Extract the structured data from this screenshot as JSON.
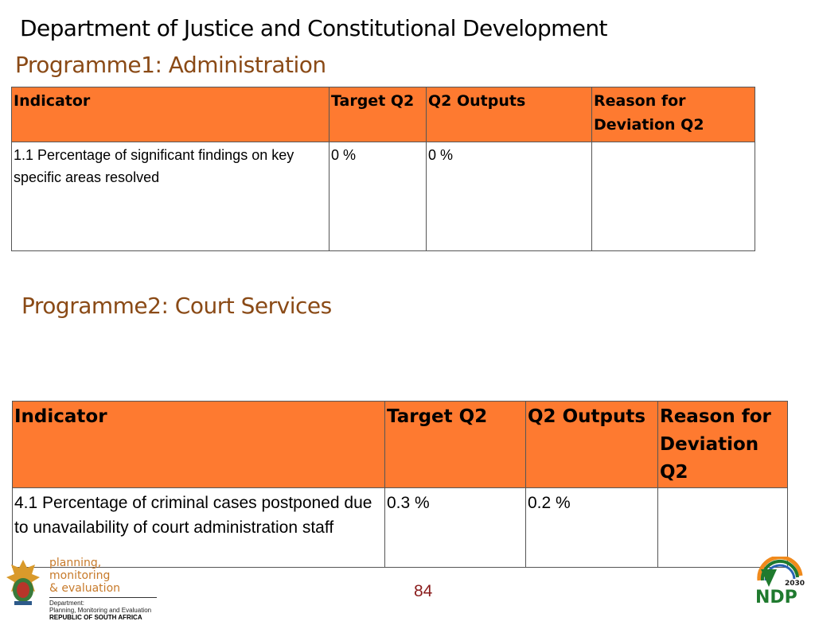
{
  "header": {
    "department": "Department of Justice and Constitutional Development"
  },
  "programme1": {
    "title": "Programme1: Administration",
    "columns": [
      "Indicator",
      "Target Q2",
      "Q2 Outputs",
      "Reason for Deviation Q2"
    ],
    "rows": [
      {
        "indicator": "1.1 Percentage of significant findings on key specific areas resolved",
        "target": "0 %",
        "output": "0 %",
        "reason": ""
      }
    ]
  },
  "programme2": {
    "title": "Programme2: Court Services",
    "columns": [
      "Indicator",
      "Target Q2",
      "Q2 Outputs",
      "Reason for Deviation Q2"
    ],
    "rows": [
      {
        "indicator": "4.1 Percentage of criminal cases postponed due to unavailability of court administration staff",
        "target": "0.3 %",
        "output": "0.2 %",
        "reason": ""
      }
    ]
  },
  "footer": {
    "logo_line1": "planning, monitoring",
    "logo_line2": "& evaluation",
    "logo_dept": "Department:",
    "logo_dept_name": "Planning, Monitoring and Evaluation",
    "logo_country": "REPUBLIC OF SOUTH AFRICA",
    "page_number": "84",
    "ndp_text": "NDP",
    "ndp_year": "2030"
  },
  "colors": {
    "header_fill": "#fe7a30",
    "programme_title": "#8a4a16",
    "page_number": "#8a1c1c"
  }
}
